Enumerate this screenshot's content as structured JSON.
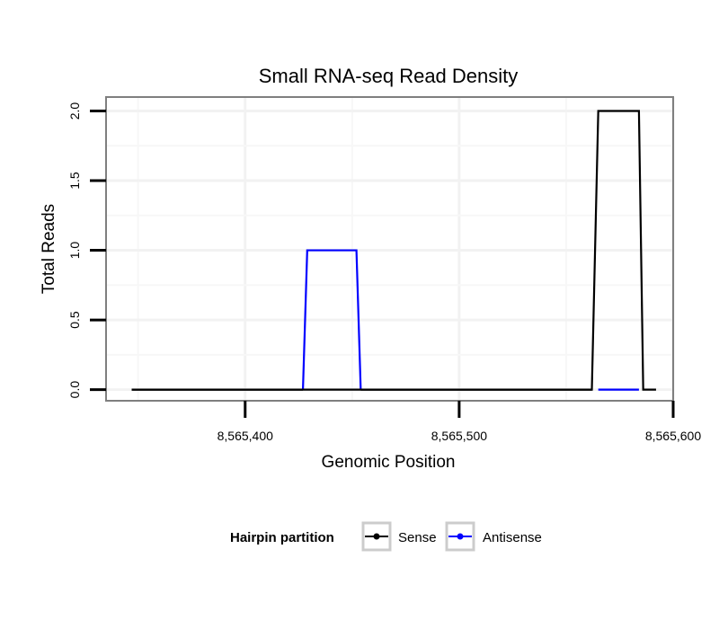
{
  "chart_data": {
    "type": "line",
    "title": "Small RNA-seq Read Density",
    "xlabel": "Genomic Position",
    "ylabel": "Total Reads",
    "xlim": [
      8565335,
      8565600
    ],
    "ylim": [
      -0.08,
      2.1
    ],
    "x_ticks": [
      8565400,
      8565500,
      8565600
    ],
    "x_tick_labels": [
      "8,565,400",
      "8,565,500",
      "8,565,600"
    ],
    "y_ticks": [
      0,
      0.5,
      1,
      1.5,
      2
    ],
    "y_tick_labels": [
      "0.0",
      "0.5",
      "1.0",
      "1.5",
      "2.0"
    ],
    "grid": true,
    "legend_position": "bottom",
    "legend_title": "Hairpin partition",
    "series": [
      {
        "name": "Sense",
        "color": "#000000",
        "points": [
          [
            8565347,
            0
          ],
          [
            8565562,
            0
          ],
          [
            8565565,
            2
          ],
          [
            8565584,
            2
          ],
          [
            8565586,
            0
          ],
          [
            8565592,
            0
          ]
        ]
      },
      {
        "name": "Antisense",
        "color": "#0000ff",
        "points": [
          [
            8565427,
            0
          ],
          [
            8565429,
            1
          ],
          [
            8565452,
            1
          ],
          [
            8565454,
            0
          ]
        ]
      }
    ],
    "overlay_points": [
      {
        "series": "Sense",
        "segment": [
          [
            8565347,
            0
          ],
          [
            8565427,
            0
          ]
        ]
      },
      {
        "series": "Sense",
        "segment": [
          [
            8565454,
            0
          ],
          [
            8565562,
            0
          ]
        ]
      },
      {
        "series": "Antisense",
        "segment": [
          [
            8565565,
            0
          ],
          [
            8565584,
            0
          ]
        ]
      }
    ]
  }
}
